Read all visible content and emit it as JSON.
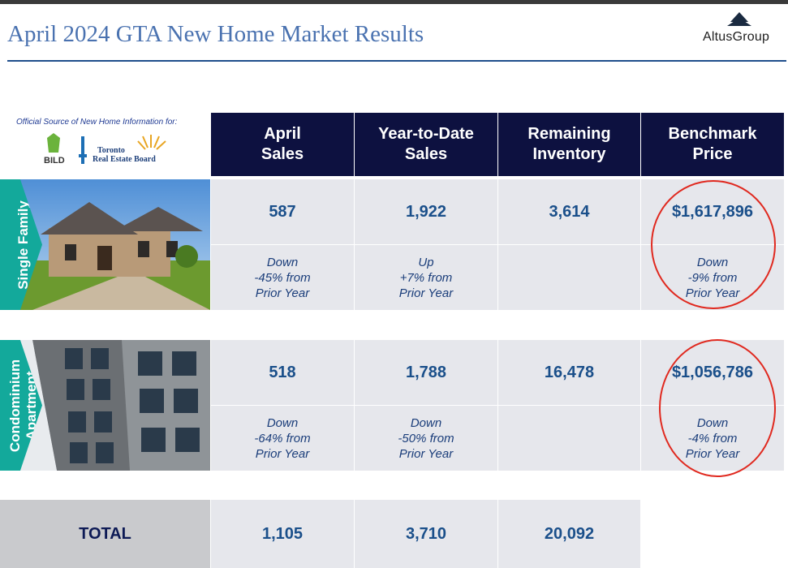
{
  "header": {
    "title": "April 2024 GTA New Home Market Results",
    "logo_text": "AltusGroup"
  },
  "source": {
    "text": "Official Source of New Home Information for:",
    "logos": [
      "BILD",
      "Toronto Real Estate Board"
    ]
  },
  "columns": [
    "April\nSales",
    "Year-to-Date\nSales",
    "Remaining\nInventory",
    "Benchmark\nPrice"
  ],
  "rows": [
    {
      "label": "Single Family",
      "values": [
        "587",
        "1,922",
        "3,614",
        "$1,617,896"
      ],
      "notes": [
        "Down\n-45% from\nPrior Year",
        "Up\n+7%  from\nPrior Year",
        "",
        "Down\n-9% from\nPrior Year"
      ]
    },
    {
      "label": "Condominium\nApartment",
      "values": [
        "518",
        "1,788",
        "16,478",
        "$1,056,786"
      ],
      "notes": [
        "Down\n-64%  from\nPrior Year",
        "Down\n-50%  from\nPrior Year",
        "",
        "Down\n-4% from\nPrior Year"
      ]
    }
  ],
  "total": {
    "label": "TOTAL",
    "values": [
      "1,105",
      "3,710",
      "20,092"
    ]
  },
  "colors": {
    "header_bg": "#0d1140",
    "accent_teal": "#13a99b",
    "value_text": "#1a4f8a",
    "highlight_circle": "#e0291f"
  }
}
